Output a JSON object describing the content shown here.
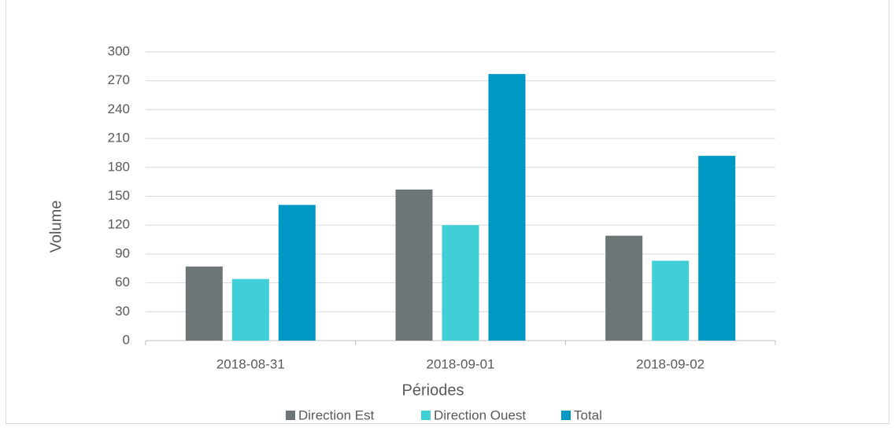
{
  "chart_data": {
    "type": "bar",
    "x_label": "Périodes",
    "y_label": "Volume",
    "categories": [
      "2018-08-31",
      "2018-09-01",
      "2018-09-02"
    ],
    "series": [
      {
        "name": "Direction Est",
        "color": "#6d7577",
        "values": [
          77,
          157,
          109
        ]
      },
      {
        "name": "Direction Ouest",
        "color": "#40cfd6",
        "values": [
          64,
          120,
          83
        ]
      },
      {
        "name": "Total",
        "color": "#0099c6",
        "values": [
          141,
          277,
          192
        ]
      }
    ],
    "ylim": [
      0,
      300
    ],
    "yticks": [
      0,
      30,
      60,
      90,
      120,
      150,
      180,
      210,
      240,
      270,
      300
    ],
    "grid": true,
    "legend": "bottom"
  }
}
